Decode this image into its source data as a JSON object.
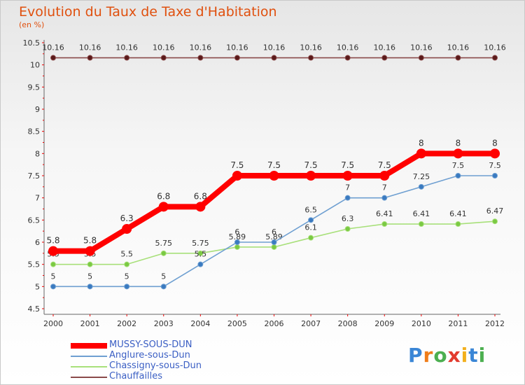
{
  "title": "Evolution du Taux de Taxe d'Habitation",
  "subtitle": "(en %)",
  "logo": {
    "letters": [
      "P",
      "r",
      "o",
      "x",
      "i",
      "t",
      "i"
    ],
    "colors": [
      "#3a86d6",
      "#ef7d1a",
      "#4caf50",
      "#e23b2e",
      "#f2b01e",
      "#3a86d6",
      "#4caf50"
    ]
  },
  "chart_data": {
    "type": "line",
    "title": "Evolution du Taux de Taxe d'Habitation",
    "ylabel": "(en %)",
    "xlabel": "",
    "x": [
      "2000",
      "2001",
      "2002",
      "2003",
      "2004",
      "2005",
      "2006",
      "2007",
      "2008",
      "2009",
      "2010",
      "2011",
      "2012"
    ],
    "ylim": [
      4.5,
      10.5
    ],
    "yticks": [
      "4.5",
      "5",
      "5.5",
      "6",
      "6.5",
      "7",
      "7.5",
      "8",
      "8.5",
      "9",
      "9.5",
      "10",
      "10.5"
    ],
    "grid": false,
    "legend_position": "bottom-left",
    "series": [
      {
        "name": "MUSSY-SOUS-DUN",
        "color": "#ff0000",
        "bold": true,
        "values": [
          5.8,
          5.8,
          6.3,
          6.8,
          6.8,
          7.5,
          7.5,
          7.5,
          7.5,
          7.5,
          8,
          8,
          8
        ],
        "labels": [
          "5.8",
          "5.8",
          "6.3",
          "6.8",
          "6.8",
          "7.5",
          "7.5",
          "7.5",
          "7.5",
          "7.5",
          "8",
          "8",
          "8"
        ]
      },
      {
        "name": "Anglure-sous-Dun",
        "color": "#6e9fd1",
        "marker": "#3a7ac0",
        "values": [
          5,
          5,
          5,
          5,
          5.5,
          6,
          6,
          6.5,
          7,
          7,
          7.25,
          7.5,
          7.5
        ],
        "labels": [
          "5",
          "5",
          "5",
          "5",
          "5.5",
          "6",
          "6",
          "6.5",
          "7",
          "7",
          "7.25",
          "7.5",
          "7.5"
        ]
      },
      {
        "name": "Chassigny-sous-Dun",
        "color": "#a8e07a",
        "marker": "#7ac943",
        "values": [
          5.5,
          5.5,
          5.5,
          5.75,
          5.75,
          5.89,
          5.89,
          6.1,
          6.3,
          6.41,
          6.41,
          6.41,
          6.47
        ],
        "labels": [
          "5.5",
          "5.5",
          "5.5",
          "5.75",
          "5.75",
          "5.89",
          "5.89",
          "6.1",
          "6.3",
          "6.41",
          "6.41",
          "6.41",
          "6.47"
        ]
      },
      {
        "name": "Chauffailles",
        "color": "#8a4a4a",
        "marker": "#5a1a1a",
        "values": [
          10.16,
          10.16,
          10.16,
          10.16,
          10.16,
          10.16,
          10.16,
          10.16,
          10.16,
          10.16,
          10.16,
          10.16,
          10.16
        ],
        "labels": [
          "10.16",
          "10.16",
          "10.16",
          "10.16",
          "10.16",
          "10.16",
          "10.16",
          "10.16",
          "10.16",
          "10.16",
          "10.16",
          "10.16",
          "10.16"
        ]
      }
    ]
  }
}
